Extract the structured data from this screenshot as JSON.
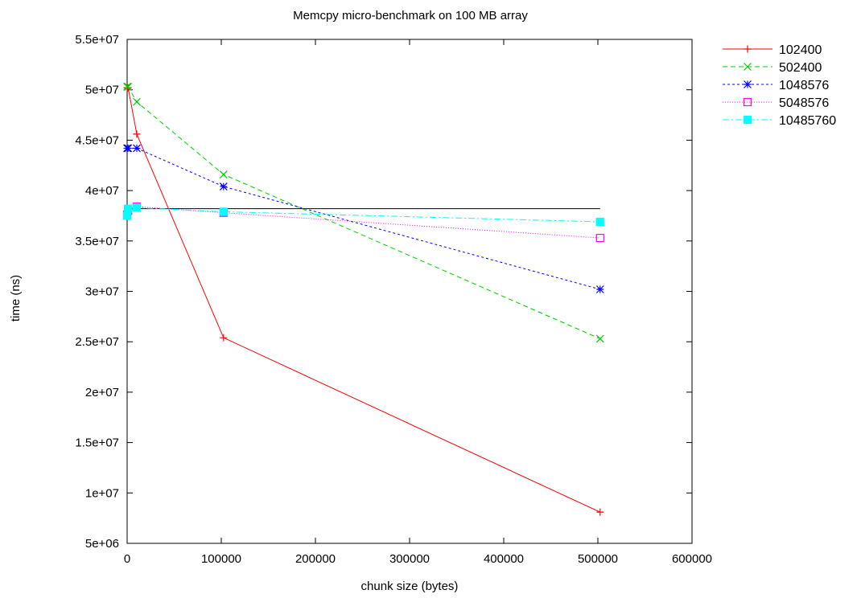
{
  "chart_data": {
    "type": "line",
    "title": "Memcpy micro-benchmark on 100 MB array",
    "xlabel": "chunk size (bytes)",
    "ylabel": "time (ns)",
    "xlim": [
      0,
      600000
    ],
    "ylim": [
      5000000,
      55000000
    ],
    "x_ticks": [
      0,
      100000,
      200000,
      300000,
      400000,
      500000,
      600000
    ],
    "x_tick_labels": [
      "0",
      "100000",
      "200000",
      "300000",
      "400000",
      "500000",
      "600000"
    ],
    "y_ticks": [
      5000000,
      10000000,
      15000000,
      20000000,
      25000000,
      30000000,
      35000000,
      40000000,
      45000000,
      50000000,
      55000000
    ],
    "y_tick_labels": [
      "5e+06",
      "1e+07",
      "1.5e+07",
      "2e+07",
      "2.5e+07",
      "3e+07",
      "3.5e+07",
      "4e+07",
      "4.5e+07",
      "5e+07",
      "5.5e+07"
    ],
    "grid": false,
    "legend_position": "outside-top-right",
    "reference_line": {
      "y": 38200000,
      "x_range": [
        0,
        502400
      ],
      "color": "#000000"
    },
    "series": [
      {
        "name": "102400",
        "color": "#ff0000",
        "dash": "",
        "marker": "plus",
        "points": [
          [
            0,
            50200000
          ],
          [
            1024,
            50200000
          ],
          [
            10240,
            45600000
          ],
          [
            102400,
            25400000
          ],
          [
            502400,
            8100000
          ]
        ]
      },
      {
        "name": "502400",
        "color": "#00cc00",
        "dash": "6,4",
        "marker": "cross",
        "points": [
          [
            0,
            50300000
          ],
          [
            1024,
            50300000
          ],
          [
            10240,
            48800000
          ],
          [
            102400,
            41600000
          ],
          [
            502400,
            25300000
          ]
        ]
      },
      {
        "name": "1048576",
        "color": "#0000ff",
        "dash": "3,3",
        "marker": "star",
        "points": [
          [
            0,
            44200000
          ],
          [
            1024,
            44200000
          ],
          [
            10240,
            44200000
          ],
          [
            102400,
            40400000
          ],
          [
            502400,
            30200000
          ]
        ]
      },
      {
        "name": "5048576",
        "color": "#ff00ff",
        "dash": "1,2",
        "marker": "box",
        "points": [
          [
            0,
            37600000
          ],
          [
            1024,
            38000000
          ],
          [
            10240,
            38400000
          ],
          [
            102400,
            37800000
          ],
          [
            502400,
            35300000
          ]
        ]
      },
      {
        "name": "10485760",
        "color": "#00ffff",
        "dash": "8,3,2,3",
        "marker": "filledbox",
        "points": [
          [
            0,
            37500000
          ],
          [
            1024,
            38200000
          ],
          [
            10240,
            38300000
          ],
          [
            102400,
            37900000
          ],
          [
            502400,
            36900000
          ]
        ]
      }
    ]
  }
}
